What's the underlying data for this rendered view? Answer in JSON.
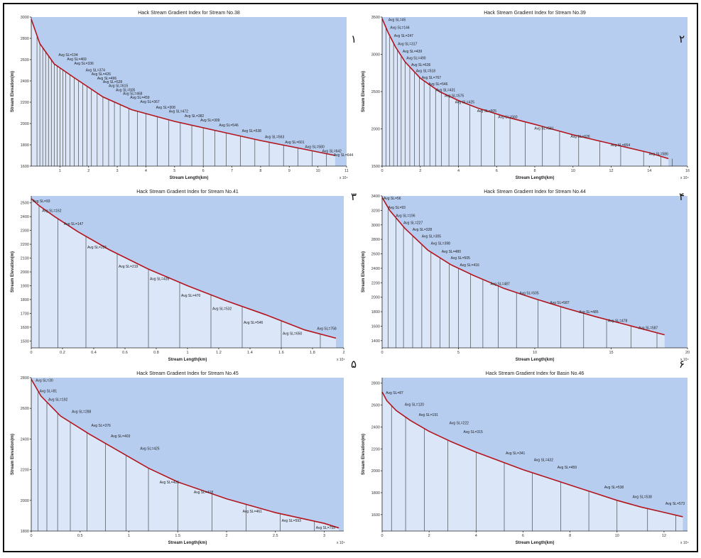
{
  "figure": {
    "panel_numbers": [
      "١",
      "٢",
      "٣",
      "۴",
      "۵",
      "۶"
    ]
  },
  "colors": {
    "plot_background": "#b7cdf0",
    "area_under_curve": "#dbe6f8",
    "profile_line": "#b3151d"
  },
  "chart_data": [
    {
      "type": "line",
      "title": "Hack Stream Gradient Index for Stream No.38",
      "xlabel": "Stream Length(km)",
      "ylabel": "Stream Elevation(m)",
      "x_multiplier": "x 10⁴",
      "xlim": [
        0,
        11
      ],
      "ylim": [
        1600,
        3000
      ],
      "xticks": [
        1,
        2,
        3,
        4,
        5,
        6,
        7,
        8,
        9,
        10,
        11
      ],
      "yticks": [
        1600,
        1800,
        2000,
        2200,
        2400,
        2600,
        2800,
        3000
      ],
      "profile": {
        "x": [
          0,
          0.3,
          0.8,
          1.5,
          2.5,
          3.5,
          5,
          6.5,
          8,
          9.5,
          10.6
        ],
        "y": [
          2980,
          2750,
          2560,
          2430,
          2250,
          2130,
          2020,
          1930,
          1840,
          1760,
          1700
        ]
      },
      "dividers": [
        0.2,
        0.3,
        0.4,
        0.5,
        0.6,
        0.7,
        0.8,
        0.9,
        1.0,
        1.1,
        1.2,
        1.35,
        1.5,
        1.65,
        1.8,
        1.95,
        2.1,
        2.3,
        2.5,
        2.7,
        2.9,
        3.1,
        3.4,
        3.7,
        4.0,
        4.4,
        4.8,
        5.2,
        5.6,
        6.0,
        6.4,
        6.8,
        7.3,
        7.8,
        8.3,
        8.8,
        9.3,
        9.8,
        10.3
      ],
      "segment_labels": [
        {
          "text": "Avg SL=194",
          "x": 0.9,
          "y": 2635
        },
        {
          "text": "Avg SL=469",
          "x": 1.2,
          "y": 2595
        },
        {
          "text": "Avg SL=336",
          "x": 1.45,
          "y": 2555
        },
        {
          "text": "Avg SL=374",
          "x": 1.85,
          "y": 2490
        },
        {
          "text": "Avg SL=426",
          "x": 2.05,
          "y": 2455
        },
        {
          "text": "Avg SL=496",
          "x": 2.25,
          "y": 2415
        },
        {
          "text": "Avg SL=528",
          "x": 2.45,
          "y": 2380
        },
        {
          "text": "Avg SL=615",
          "x": 2.65,
          "y": 2345
        },
        {
          "text": "Avg SL=505",
          "x": 2.9,
          "y": 2305
        },
        {
          "text": "Avg SL=468",
          "x": 3.15,
          "y": 2270
        },
        {
          "text": "Avg SL=459",
          "x": 3.4,
          "y": 2235
        },
        {
          "text": "Avg SL=367",
          "x": 3.75,
          "y": 2195
        },
        {
          "text": "Avg SL=308",
          "x": 4.3,
          "y": 2140
        },
        {
          "text": "Avg SL=472",
          "x": 4.75,
          "y": 2105
        },
        {
          "text": "Avg SL=382",
          "x": 5.3,
          "y": 2060
        },
        {
          "text": "Avg SL=309",
          "x": 5.85,
          "y": 2020
        },
        {
          "text": "Avg SL=546",
          "x": 6.5,
          "y": 1975
        },
        {
          "text": "Avg SL=538",
          "x": 7.3,
          "y": 1920
        },
        {
          "text": "Avg SL=563",
          "x": 8.1,
          "y": 1865
        },
        {
          "text": "Avg SL=601",
          "x": 8.8,
          "y": 1815
        },
        {
          "text": "Avg SL=580",
          "x": 9.5,
          "y": 1770
        },
        {
          "text": "Avg SL=642",
          "x": 10.1,
          "y": 1730
        },
        {
          "text": "Avg SL=644",
          "x": 10.5,
          "y": 1695
        }
      ]
    },
    {
      "type": "line",
      "title": "Hack Stream Gradient Index for Stream No.39",
      "xlabel": "Stream Length(km)",
      "ylabel": "Stream Elevation(m)",
      "x_multiplier": "x 10⁴",
      "xlim": [
        0,
        16
      ],
      "ylim": [
        1500,
        3500
      ],
      "xticks": [
        0,
        2,
        4,
        6,
        8,
        10,
        12,
        14,
        16
      ],
      "yticks": [
        1500,
        2000,
        2500,
        3000,
        3500
      ],
      "profile": {
        "x": [
          0,
          0.3,
          0.7,
          1.2,
          2,
          3,
          4,
          5,
          6.5,
          8,
          10,
          12,
          14,
          15
        ],
        "y": [
          3480,
          3300,
          3100,
          2900,
          2680,
          2500,
          2380,
          2280,
          2160,
          2060,
          1920,
          1800,
          1680,
          1600
        ]
      },
      "dividers": [
        0.2,
        0.4,
        0.6,
        0.8,
        1.0,
        1.2,
        1.45,
        1.7,
        1.95,
        2.2,
        2.5,
        2.8,
        3.1,
        3.5,
        4.0,
        4.6,
        5.2,
        5.9,
        6.7,
        7.5,
        8.4,
        9.3,
        10.3,
        11.4,
        12.5,
        13.7,
        14.6,
        15.2
      ],
      "segment_labels": [
        {
          "text": "Avg SL=45",
          "x": 0.25,
          "y": 3450
        },
        {
          "text": "Avg SL=144",
          "x": 0.35,
          "y": 3345
        },
        {
          "text": "Avg SL=247",
          "x": 0.55,
          "y": 3235
        },
        {
          "text": "Avg SL=317",
          "x": 0.75,
          "y": 3125
        },
        {
          "text": "Avg SL=439",
          "x": 1.0,
          "y": 3025
        },
        {
          "text": "Avg SL=490",
          "x": 1.2,
          "y": 2935
        },
        {
          "text": "Avg SL=636",
          "x": 1.45,
          "y": 2845
        },
        {
          "text": "Avg SL=518",
          "x": 1.7,
          "y": 2760
        },
        {
          "text": "Avg SL=767",
          "x": 2.0,
          "y": 2670
        },
        {
          "text": "Avg SL=546",
          "x": 2.35,
          "y": 2585
        },
        {
          "text": "Avg SL=431",
          "x": 2.75,
          "y": 2505
        },
        {
          "text": "Avg SL=575",
          "x": 3.2,
          "y": 2430
        },
        {
          "text": "Avg SL=425",
          "x": 3.75,
          "y": 2345
        },
        {
          "text": "Avg SL=605",
          "x": 4.9,
          "y": 2225
        },
        {
          "text": "Avg SL=560",
          "x": 6.0,
          "y": 2145
        },
        {
          "text": "Avg SL=581",
          "x": 7.9,
          "y": 1990
        },
        {
          "text": "Avg SL=626",
          "x": 9.8,
          "y": 1880
        },
        {
          "text": "Avg SL=654",
          "x": 11.9,
          "y": 1765
        },
        {
          "text": "Avg SL=586",
          "x": 13.9,
          "y": 1650
        }
      ]
    },
    {
      "type": "line",
      "title": "Hack Stream Gradient Index for Stream No.41",
      "xlabel": "Stream Length(km)",
      "ylabel": "Stream Elevation(m)",
      "x_multiplier": "x 10⁴",
      "xlim": [
        0,
        2
      ],
      "ylim": [
        1450,
        2550
      ],
      "xticks": [
        0,
        0.2,
        0.4,
        0.6,
        0.8,
        1,
        1.2,
        1.4,
        1.6,
        1.8,
        2
      ],
      "yticks": [
        1500,
        1600,
        1700,
        1800,
        1900,
        2000,
        2100,
        2200,
        2300,
        2400,
        2500
      ],
      "profile": {
        "x": [
          0,
          0.05,
          0.15,
          0.3,
          0.5,
          0.75,
          1.0,
          1.25,
          1.5,
          1.75,
          1.95
        ],
        "y": [
          2530,
          2480,
          2400,
          2290,
          2160,
          2020,
          1900,
          1790,
          1690,
          1580,
          1520
        ]
      },
      "dividers": [
        0.05,
        0.17,
        0.35,
        0.55,
        0.75,
        0.95,
        1.15,
        1.35,
        1.6,
        1.85
      ],
      "segment_labels": [
        {
          "text": "Avg SL=93",
          "x": 0.0,
          "y": 2505
        },
        {
          "text": "Avg SL=162",
          "x": 0.06,
          "y": 2435
        },
        {
          "text": "Avg SL=147",
          "x": 0.2,
          "y": 2340
        },
        {
          "text": "Avg SL=221",
          "x": 0.35,
          "y": 2170
        },
        {
          "text": "Avg SL=219",
          "x": 0.55,
          "y": 2030
        },
        {
          "text": "Avg SL=435",
          "x": 0.75,
          "y": 1940
        },
        {
          "text": "Avg SL=470",
          "x": 0.95,
          "y": 1820
        },
        {
          "text": "Avg SL=532",
          "x": 1.15,
          "y": 1725
        },
        {
          "text": "Avg SL=546",
          "x": 1.35,
          "y": 1625
        },
        {
          "text": "Avg SL=650",
          "x": 1.6,
          "y": 1545
        },
        {
          "text": "Avg SL=758",
          "x": 1.82,
          "y": 1580
        }
      ]
    },
    {
      "type": "line",
      "title": "Hack Stream Gradient Index for Stream No.44",
      "xlabel": "Stream Length(km)",
      "ylabel": "Stream Elevation(m)",
      "x_multiplier": "x 10⁴",
      "xlim": [
        0,
        20
      ],
      "ylim": [
        1300,
        3400
      ],
      "xticks": [
        0,
        5,
        10,
        15,
        20
      ],
      "yticks": [
        1400,
        1600,
        1800,
        2000,
        2200,
        2400,
        2600,
        2800,
        3000,
        3200,
        3400
      ],
      "profile": {
        "x": [
          0,
          0.5,
          1.5,
          3,
          4.5,
          6,
          8,
          10,
          12,
          14,
          16,
          18.5
        ],
        "y": [
          3380,
          3200,
          2950,
          2650,
          2450,
          2300,
          2120,
          1980,
          1850,
          1730,
          1620,
          1480
        ]
      },
      "dividers": [
        0.4,
        0.9,
        1.4,
        2.0,
        2.6,
        3.2,
        3.8,
        4.4,
        5.0,
        5.8,
        6.6,
        7.6,
        8.8,
        10.2,
        11.7,
        13.2,
        14.7,
        16.3,
        18.0
      ],
      "segment_labels": [
        {
          "text": "Avg SL=56",
          "x": 0.0,
          "y": 3350
        },
        {
          "text": "Avg SL=93",
          "x": 0.3,
          "y": 3225
        },
        {
          "text": "Avg SL=196",
          "x": 0.8,
          "y": 3110
        },
        {
          "text": "Avg SL=227",
          "x": 1.3,
          "y": 3010
        },
        {
          "text": "Avg SL=328",
          "x": 1.9,
          "y": 2920
        },
        {
          "text": "Avg SL=305",
          "x": 2.5,
          "y": 2825
        },
        {
          "text": "Avg SL=398",
          "x": 3.1,
          "y": 2730
        },
        {
          "text": "Avg SL=480",
          "x": 3.8,
          "y": 2615
        },
        {
          "text": "Avg SL=505",
          "x": 4.4,
          "y": 2525
        },
        {
          "text": "Avg SL=416",
          "x": 5.0,
          "y": 2430
        },
        {
          "text": "Avg SL=487",
          "x": 7.0,
          "y": 2170
        },
        {
          "text": "Avg SL=505",
          "x": 8.9,
          "y": 2040
        },
        {
          "text": "Avg SL=587",
          "x": 10.9,
          "y": 1910
        },
        {
          "text": "Avg SL=485",
          "x": 12.8,
          "y": 1780
        },
        {
          "text": "Avg SL=478",
          "x": 14.7,
          "y": 1660
        },
        {
          "text": "Avg SL=587",
          "x": 16.7,
          "y": 1560
        }
      ]
    },
    {
      "type": "line",
      "title": "Hack Stream Gradient Index for Stream No.45",
      "xlabel": "Stream Length(km)",
      "ylabel": "Stream Elevation(m)",
      "x_multiplier": "x 10⁴",
      "xlim": [
        0,
        3.2
      ],
      "ylim": [
        1800,
        2800
      ],
      "xticks": [
        0,
        0.5,
        1,
        1.5,
        2,
        2.5,
        3
      ],
      "yticks": [
        1800,
        2000,
        2200,
        2400,
        2600,
        2800
      ],
      "profile": {
        "x": [
          0,
          0.1,
          0.3,
          0.6,
          0.9,
          1.2,
          1.5,
          2.0,
          2.5,
          3.0,
          3.15
        ],
        "y": [
          2790,
          2680,
          2550,
          2430,
          2320,
          2210,
          2120,
          2010,
          1920,
          1850,
          1820
        ]
      },
      "dividers": [
        0.07,
        0.16,
        0.27,
        0.4,
        0.57,
        0.76,
        0.97,
        1.2,
        1.5,
        1.85,
        2.2,
        2.55,
        2.9
      ],
      "segment_labels": [
        {
          "text": "Avg SL=30",
          "x": 0.03,
          "y": 2775
        },
        {
          "text": "Avg SL=81",
          "x": 0.07,
          "y": 2705
        },
        {
          "text": "Avg SL=192",
          "x": 0.16,
          "y": 2650
        },
        {
          "text": "Avg SL=288",
          "x": 0.4,
          "y": 2570
        },
        {
          "text": "Avg SL=376",
          "x": 0.6,
          "y": 2480
        },
        {
          "text": "Avg SL=403",
          "x": 0.8,
          "y": 2410
        },
        {
          "text": "Avg SL=425",
          "x": 1.1,
          "y": 2330
        },
        {
          "text": "Avg SL=426",
          "x": 1.3,
          "y": 2110
        },
        {
          "text": "Avg SL=418",
          "x": 1.65,
          "y": 2045
        },
        {
          "text": "Avg SL=461",
          "x": 2.15,
          "y": 1920
        },
        {
          "text": "Avg SL=593",
          "x": 2.55,
          "y": 1860
        },
        {
          "text": "Avg SL=755",
          "x": 2.9,
          "y": 1815
        }
      ]
    },
    {
      "type": "line",
      "title": "Hack Stream Gradient Index for Basin No.46",
      "xlabel": "Stream Length(km)",
      "ylabel": "Stream Elevation(m)",
      "x_multiplier": "x 10⁴",
      "xlim": [
        0,
        13
      ],
      "ylim": [
        1450,
        2850
      ],
      "xticks": [
        0,
        2,
        4,
        6,
        8,
        10,
        12
      ],
      "yticks": [
        1600,
        1800,
        2000,
        2200,
        2400,
        2600,
        2800
      ],
      "profile": {
        "x": [
          0,
          0.2,
          0.6,
          1.2,
          2,
          3,
          4,
          5,
          6,
          7,
          8,
          9,
          10,
          11,
          12,
          12.8
        ],
        "y": [
          2720,
          2640,
          2550,
          2460,
          2360,
          2260,
          2170,
          2090,
          2010,
          1940,
          1870,
          1800,
          1730,
          1670,
          1620,
          1580
        ]
      },
      "dividers": [
        0.4,
        1.0,
        1.8,
        2.8,
        4.0,
        5.2,
        6.4,
        7.6,
        8.8,
        10.0,
        11.3,
        12.5
      ],
      "segment_labels": [
        {
          "text": "Avg SL=87",
          "x": 0.1,
          "y": 2700
        },
        {
          "text": "Avg SL=120",
          "x": 0.9,
          "y": 2595
        },
        {
          "text": "Avg SL=191",
          "x": 1.5,
          "y": 2500
        },
        {
          "text": "Avg SL=222",
          "x": 2.8,
          "y": 2425
        },
        {
          "text": "Avg SL=315",
          "x": 3.4,
          "y": 2345
        },
        {
          "text": "Avg SL=341",
          "x": 5.2,
          "y": 2150
        },
        {
          "text": "Avg SL=432",
          "x": 6.4,
          "y": 2090
        },
        {
          "text": "Avg SL=459",
          "x": 7.4,
          "y": 2020
        },
        {
          "text": "Avg SL=538",
          "x": 9.4,
          "y": 1840
        },
        {
          "text": "Avg SL=538",
          "x": 10.6,
          "y": 1750
        },
        {
          "text": "Avg SL=573",
          "x": 12.0,
          "y": 1690
        }
      ]
    }
  ]
}
